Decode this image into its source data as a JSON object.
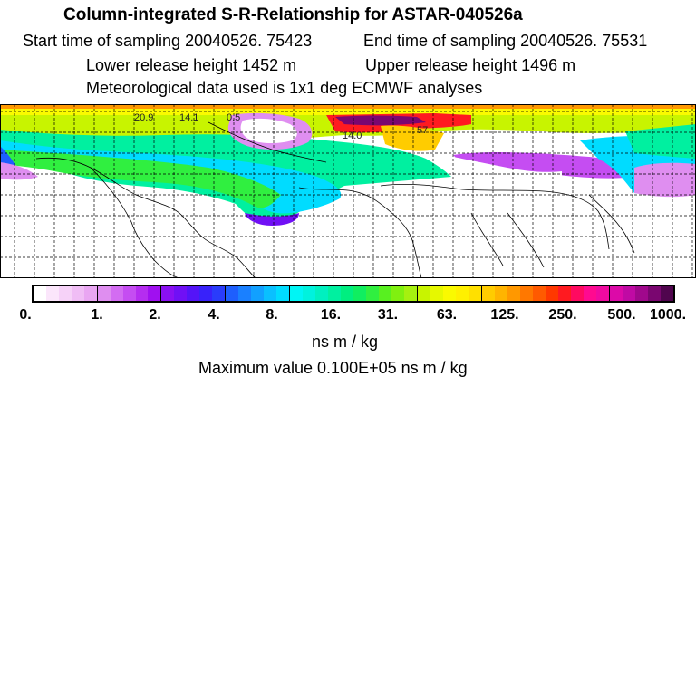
{
  "header": {
    "title": "Column-integrated S-R-Relationship for ASTAR-040526a",
    "start_time": "Start time of sampling 20040526. 75423",
    "end_time": "End time of sampling 20040526. 75531",
    "lower_height": "Lower release height 1452 m",
    "upper_height": "Upper release height 1496 m",
    "met_data": "Meteorological data used is 1x1 deg ECMWF analyses"
  },
  "colorbar": {
    "ticks": [
      "0.",
      "1.",
      "2.",
      "4.",
      "8.",
      "16.",
      "31.",
      "63.",
      "125.",
      "250.",
      "500.",
      "1000."
    ],
    "units": "ns m / kg",
    "colors": [
      "#ffffff",
      "#fbe6fb",
      "#f6d2f8",
      "#f0bdf5",
      "#e9a6f2",
      "#df8ef0",
      "#d36cf2",
      "#c54df2",
      "#b52df0",
      "#a010f0",
      "#8a10f2",
      "#7010f5",
      "#5414f8",
      "#3822fa",
      "#2a3cfb",
      "#1e5ffd",
      "#1a80ff",
      "#12a0ff",
      "#0ac0ff",
      "#00dcff",
      "#00f5f5",
      "#00f2de",
      "#00f0c0",
      "#00f0a0",
      "#00ee80",
      "#10ee60",
      "#30ef40",
      "#58f020",
      "#80f010",
      "#a6f010",
      "#c8f400",
      "#e6f800",
      "#fafa00",
      "#fff000",
      "#ffe000",
      "#ffcc00",
      "#ffb400",
      "#ff9800",
      "#ff7800",
      "#ff5a00",
      "#ff3800",
      "#ff1a20",
      "#ff0a60",
      "#ff0a90",
      "#f00aa0",
      "#dc0aa8",
      "#c00aa4",
      "#a0088c",
      "#7a0670",
      "#50054e"
    ],
    "groups_per_decade_separator_every": 5
  },
  "max_value": "Maximum value  0.100E+05 ns m / kg",
  "map": {
    "markers": [
      "20.9",
      "14.1",
      "0.5",
      "14.0",
      "57"
    ],
    "legend_items_colors": {
      "low": "#e9a6f2",
      "mid": "#00f5f5",
      "high": "#ff1a20"
    }
  }
}
